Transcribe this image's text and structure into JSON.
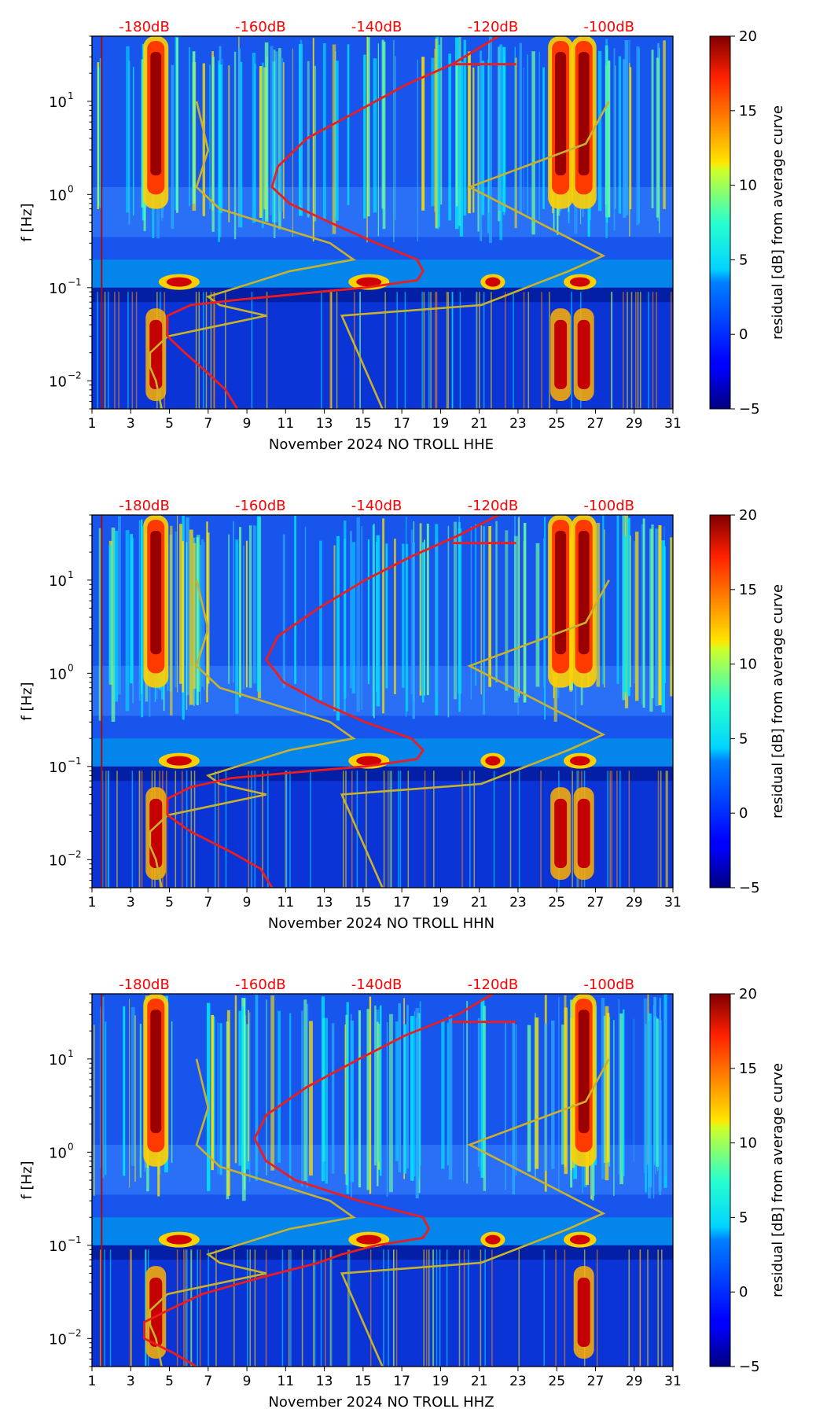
{
  "chart_data": [
    {
      "type": "heatmap",
      "id": "hhe",
      "xlabel": "November 2024 NO TROLL  HHE",
      "ylabel": "f [Hz]",
      "xlim": [
        1,
        31
      ],
      "ylim": [
        0.005,
        50
      ],
      "yscale": "log",
      "x_ticks": [
        "1",
        "3",
        "5",
        "7",
        "9",
        "11",
        "13",
        "15",
        "17",
        "19",
        "21",
        "23",
        "25",
        "27",
        "29",
        "31"
      ],
      "y_ticks": [
        {
          "base": "10",
          "exp": "−2",
          "value": 0.01
        },
        {
          "base": "10",
          "exp": "−1",
          "value": 0.1
        },
        {
          "base": "10",
          "exp": "0",
          "value": 1
        },
        {
          "base": "10",
          "exp": "1",
          "value": 10
        }
      ],
      "top_axis_labels": [
        "-180dB",
        "-160dB",
        "-140dB",
        "-120dB",
        "-100dB"
      ],
      "top_axis_color": "#ff0000",
      "colorbar": {
        "label": "residual [dB] from average curve",
        "min": -5,
        "max": 20,
        "ticks": [
          "20",
          "15",
          "10",
          "5",
          "0",
          "−5"
        ],
        "colormap": "jet"
      },
      "red_curve_dB": [
        [
          -164,
          0.005
        ],
        [
          -166,
          0.008
        ],
        [
          -169,
          0.012
        ],
        [
          -173,
          0.02
        ],
        [
          -176,
          0.03
        ],
        [
          -176,
          0.05
        ],
        [
          -172,
          0.065
        ],
        [
          -163,
          0.075
        ],
        [
          -150,
          0.09
        ],
        [
          -142,
          0.1
        ],
        [
          -133,
          0.12
        ],
        [
          -132,
          0.15
        ],
        [
          -133,
          0.2
        ],
        [
          -140,
          0.3
        ],
        [
          -148,
          0.5
        ],
        [
          -155,
          0.8
        ],
        [
          -158,
          1.2
        ],
        [
          -157,
          2.0
        ],
        [
          -152,
          4.0
        ],
        [
          -143,
          8.0
        ],
        [
          -135,
          15.0
        ],
        [
          -127,
          25.0
        ],
        [
          -119,
          50.0
        ]
      ],
      "yellow_high_noise_dB": [
        [
          -100,
          10
        ],
        [
          -104,
          3.5
        ],
        [
          -124,
          1.2
        ],
        [
          -101,
          0.22
        ],
        [
          -107,
          0.15
        ],
        [
          -122,
          0.065
        ],
        [
          -146,
          0.05
        ],
        [
          -139,
          0.005
        ]
      ],
      "yellow_low_noise_dB": [
        [
          -177,
          0.005
        ],
        [
          -178,
          0.01
        ],
        [
          -179,
          0.014
        ],
        [
          -179,
          0.02
        ],
        [
          -176,
          0.03
        ],
        [
          -159,
          0.05
        ],
        [
          -167,
          0.065
        ],
        [
          -169,
          0.08
        ],
        [
          -155,
          0.15
        ],
        [
          -144,
          0.2
        ],
        [
          -148,
          0.3
        ],
        [
          -167,
          0.7
        ],
        [
          -171,
          1.2
        ],
        [
          -169,
          3.0
        ],
        [
          -171,
          10
        ]
      ],
      "energy_bursts_day": [
        4.3,
        25.2,
        26.4
      ],
      "microseism_band_Hz": [
        0.1,
        0.2
      ]
    },
    {
      "type": "heatmap",
      "id": "hhn",
      "xlabel": "November 2024 NO TROLL  HHN",
      "ylabel": "f [Hz]",
      "xlim": [
        1,
        31
      ],
      "ylim": [
        0.005,
        50
      ],
      "yscale": "log",
      "x_ticks": [
        "1",
        "3",
        "5",
        "7",
        "9",
        "11",
        "13",
        "15",
        "17",
        "19",
        "21",
        "23",
        "25",
        "27",
        "29",
        "31"
      ],
      "y_ticks": [
        {
          "base": "10",
          "exp": "−2",
          "value": 0.01
        },
        {
          "base": "10",
          "exp": "−1",
          "value": 0.1
        },
        {
          "base": "10",
          "exp": "0",
          "value": 1
        },
        {
          "base": "10",
          "exp": "1",
          "value": 10
        }
      ],
      "top_axis_labels": [
        "-180dB",
        "-160dB",
        "-140dB",
        "-120dB",
        "-100dB"
      ],
      "top_axis_color": "#ff0000",
      "colorbar": {
        "label": "residual [dB] from average curve",
        "min": -5,
        "max": 20,
        "ticks": [
          "20",
          "15",
          "10",
          "5",
          "0",
          "−5"
        ],
        "colormap": "jet"
      },
      "red_curve_dB": [
        [
          -158,
          0.005
        ],
        [
          -160,
          0.008
        ],
        [
          -165,
          0.012
        ],
        [
          -172,
          0.02
        ],
        [
          -176,
          0.03
        ],
        [
          -176,
          0.045
        ],
        [
          -172,
          0.06
        ],
        [
          -165,
          0.075
        ],
        [
          -151,
          0.09
        ],
        [
          -142,
          0.1
        ],
        [
          -133,
          0.12
        ],
        [
          -132,
          0.15
        ],
        [
          -134,
          0.2
        ],
        [
          -142,
          0.3
        ],
        [
          -150,
          0.5
        ],
        [
          -156,
          0.8
        ],
        [
          -159,
          1.4
        ],
        [
          -157,
          2.5
        ],
        [
          -150,
          5.0
        ],
        [
          -142,
          10.0
        ],
        [
          -134,
          18.0
        ],
        [
          -126,
          30.0
        ],
        [
          -119,
          50.0
        ]
      ],
      "yellow_high_noise_dB": [
        [
          -100,
          10
        ],
        [
          -104,
          3.5
        ],
        [
          -124,
          1.2
        ],
        [
          -101,
          0.22
        ],
        [
          -107,
          0.15
        ],
        [
          -122,
          0.065
        ],
        [
          -146,
          0.05
        ],
        [
          -139,
          0.005
        ]
      ],
      "yellow_low_noise_dB": [
        [
          -177,
          0.005
        ],
        [
          -178,
          0.01
        ],
        [
          -179,
          0.014
        ],
        [
          -179,
          0.02
        ],
        [
          -176,
          0.03
        ],
        [
          -159,
          0.05
        ],
        [
          -167,
          0.065
        ],
        [
          -169,
          0.08
        ],
        [
          -155,
          0.15
        ],
        [
          -144,
          0.2
        ],
        [
          -148,
          0.3
        ],
        [
          -167,
          0.7
        ],
        [
          -171,
          1.2
        ],
        [
          -169,
          3.0
        ],
        [
          -171,
          10
        ]
      ],
      "energy_bursts_day": [
        4.3,
        25.2,
        26.4
      ],
      "microseism_band_Hz": [
        0.1,
        0.2
      ]
    },
    {
      "type": "heatmap",
      "id": "hhz",
      "xlabel": "November 2024 NO TROLL  HHZ",
      "ylabel": "f [Hz]",
      "xlim": [
        1,
        31
      ],
      "ylim": [
        0.005,
        50
      ],
      "yscale": "log",
      "x_ticks": [
        "1",
        "3",
        "5",
        "7",
        "9",
        "11",
        "13",
        "15",
        "17",
        "19",
        "21",
        "23",
        "25",
        "27",
        "29",
        "31"
      ],
      "y_ticks": [
        {
          "base": "10",
          "exp": "−2",
          "value": 0.01
        },
        {
          "base": "10",
          "exp": "−1",
          "value": 0.1
        },
        {
          "base": "10",
          "exp": "0",
          "value": 1
        },
        {
          "base": "10",
          "exp": "1",
          "value": 10
        }
      ],
      "top_axis_labels": [
        "-180dB",
        "-160dB",
        "-140dB",
        "-120dB",
        "-100dB"
      ],
      "top_axis_color": "#ff0000",
      "colorbar": {
        "label": "residual [dB] from average curve",
        "min": -5,
        "max": 20,
        "ticks": [
          "20",
          "15",
          "10",
          "5",
          "0",
          "−5"
        ],
        "colormap": "jet"
      },
      "red_curve_dB": [
        [
          -171,
          0.005
        ],
        [
          -175,
          0.007
        ],
        [
          -180,
          0.01
        ],
        [
          -180,
          0.015
        ],
        [
          -176,
          0.02
        ],
        [
          -170,
          0.03
        ],
        [
          -160,
          0.045
        ],
        [
          -150,
          0.065
        ],
        [
          -146,
          0.08
        ],
        [
          -140,
          0.1
        ],
        [
          -132,
          0.12
        ],
        [
          -131,
          0.15
        ],
        [
          -132,
          0.2
        ],
        [
          -143,
          0.3
        ],
        [
          -154,
          0.5
        ],
        [
          -159,
          0.8
        ],
        [
          -161,
          1.4
        ],
        [
          -159,
          2.5
        ],
        [
          -152,
          5.0
        ],
        [
          -143,
          10.0
        ],
        [
          -135,
          18.0
        ],
        [
          -126,
          30.0
        ],
        [
          -120,
          50.0
        ]
      ],
      "yellow_high_noise_dB": [
        [
          -100,
          10
        ],
        [
          -104,
          3.5
        ],
        [
          -124,
          1.2
        ],
        [
          -101,
          0.22
        ],
        [
          -107,
          0.15
        ],
        [
          -122,
          0.065
        ],
        [
          -146,
          0.05
        ],
        [
          -139,
          0.005
        ]
      ],
      "yellow_low_noise_dB": [
        [
          -177,
          0.005
        ],
        [
          -178,
          0.01
        ],
        [
          -179,
          0.014
        ],
        [
          -179,
          0.02
        ],
        [
          -176,
          0.03
        ],
        [
          -159,
          0.05
        ],
        [
          -167,
          0.065
        ],
        [
          -169,
          0.08
        ],
        [
          -155,
          0.15
        ],
        [
          -144,
          0.2
        ],
        [
          -148,
          0.3
        ],
        [
          -167,
          0.7
        ],
        [
          -171,
          1.2
        ],
        [
          -169,
          3.0
        ],
        [
          -171,
          10
        ]
      ],
      "energy_bursts_day": [
        4.3,
        26.4
      ],
      "microseism_band_Hz": [
        0.1,
        0.2
      ]
    }
  ]
}
